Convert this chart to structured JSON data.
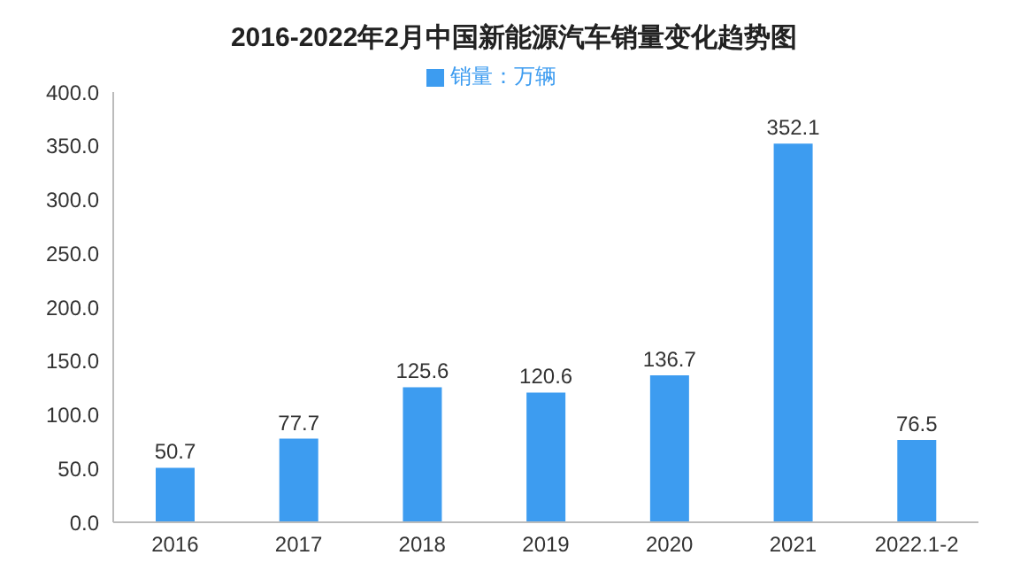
{
  "chart_data": {
    "type": "bar",
    "title": "2016-2022年2月中国新能源汽车销量变化趋势图",
    "categories": [
      "2016",
      "2017",
      "2018",
      "2019",
      "2020",
      "2021",
      "2022.1-2"
    ],
    "series": [
      {
        "name": "销量：万辆",
        "color": "#3d9cf0",
        "values": [
          50.7,
          77.7,
          125.6,
          120.6,
          136.7,
          352.1,
          76.5
        ]
      }
    ],
    "ylim": [
      0,
      400
    ],
    "yticks": [
      {
        "value": 0,
        "label": "0.0"
      },
      {
        "value": 50,
        "label": "50.0"
      },
      {
        "value": 100,
        "label": "100.0"
      },
      {
        "value": 150,
        "label": "150.0"
      },
      {
        "value": 200,
        "label": "200.0"
      },
      {
        "value": 250,
        "label": "250.0"
      },
      {
        "value": 300,
        "label": "300.0"
      },
      {
        "value": 350,
        "label": "350.0"
      },
      {
        "value": 400,
        "label": "400.0"
      }
    ],
    "data_labels": true,
    "legend": "top",
    "grid": false
  }
}
